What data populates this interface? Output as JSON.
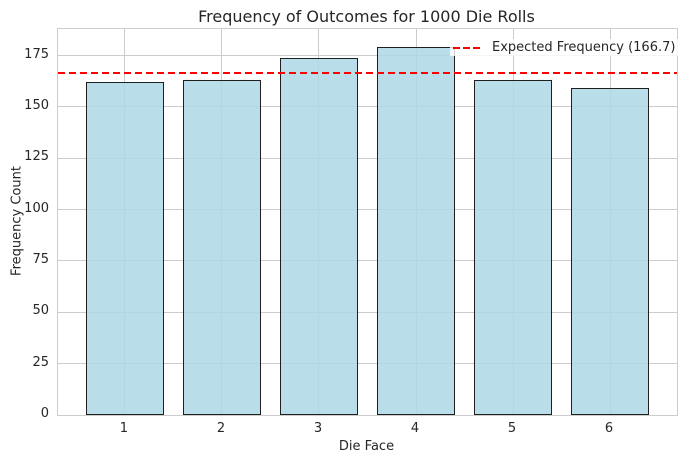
{
  "chart_data": {
    "type": "bar",
    "title": "Frequency of Outcomes for 1000 Die Rolls",
    "xlabel": "Die Face",
    "ylabel": "Frequency Count",
    "categories": [
      "1",
      "2",
      "3",
      "4",
      "5",
      "6"
    ],
    "values": [
      162,
      163,
      174,
      179,
      163,
      159
    ],
    "yticks": [
      0,
      25,
      50,
      75,
      100,
      125,
      150,
      175
    ],
    "ylim": [
      0,
      187.95
    ],
    "xlim": [
      0.31,
      6.69
    ],
    "x_positions": [
      1,
      2,
      3,
      4,
      5,
      6
    ],
    "bar_width_units": 0.8,
    "grid": true,
    "legend_position": "upper right",
    "ref_line": {
      "value": 166.7,
      "label": "Expected Frequency (166.7)",
      "style": "dashed"
    },
    "colors": {
      "bar_fill": "rgba(173, 216, 230, 0.85)",
      "bar_edge": "#1f1f1f",
      "ref_line": "#ff0000",
      "grid": "#cccccc",
      "spine": "#cccccc",
      "text": "#262626"
    }
  }
}
